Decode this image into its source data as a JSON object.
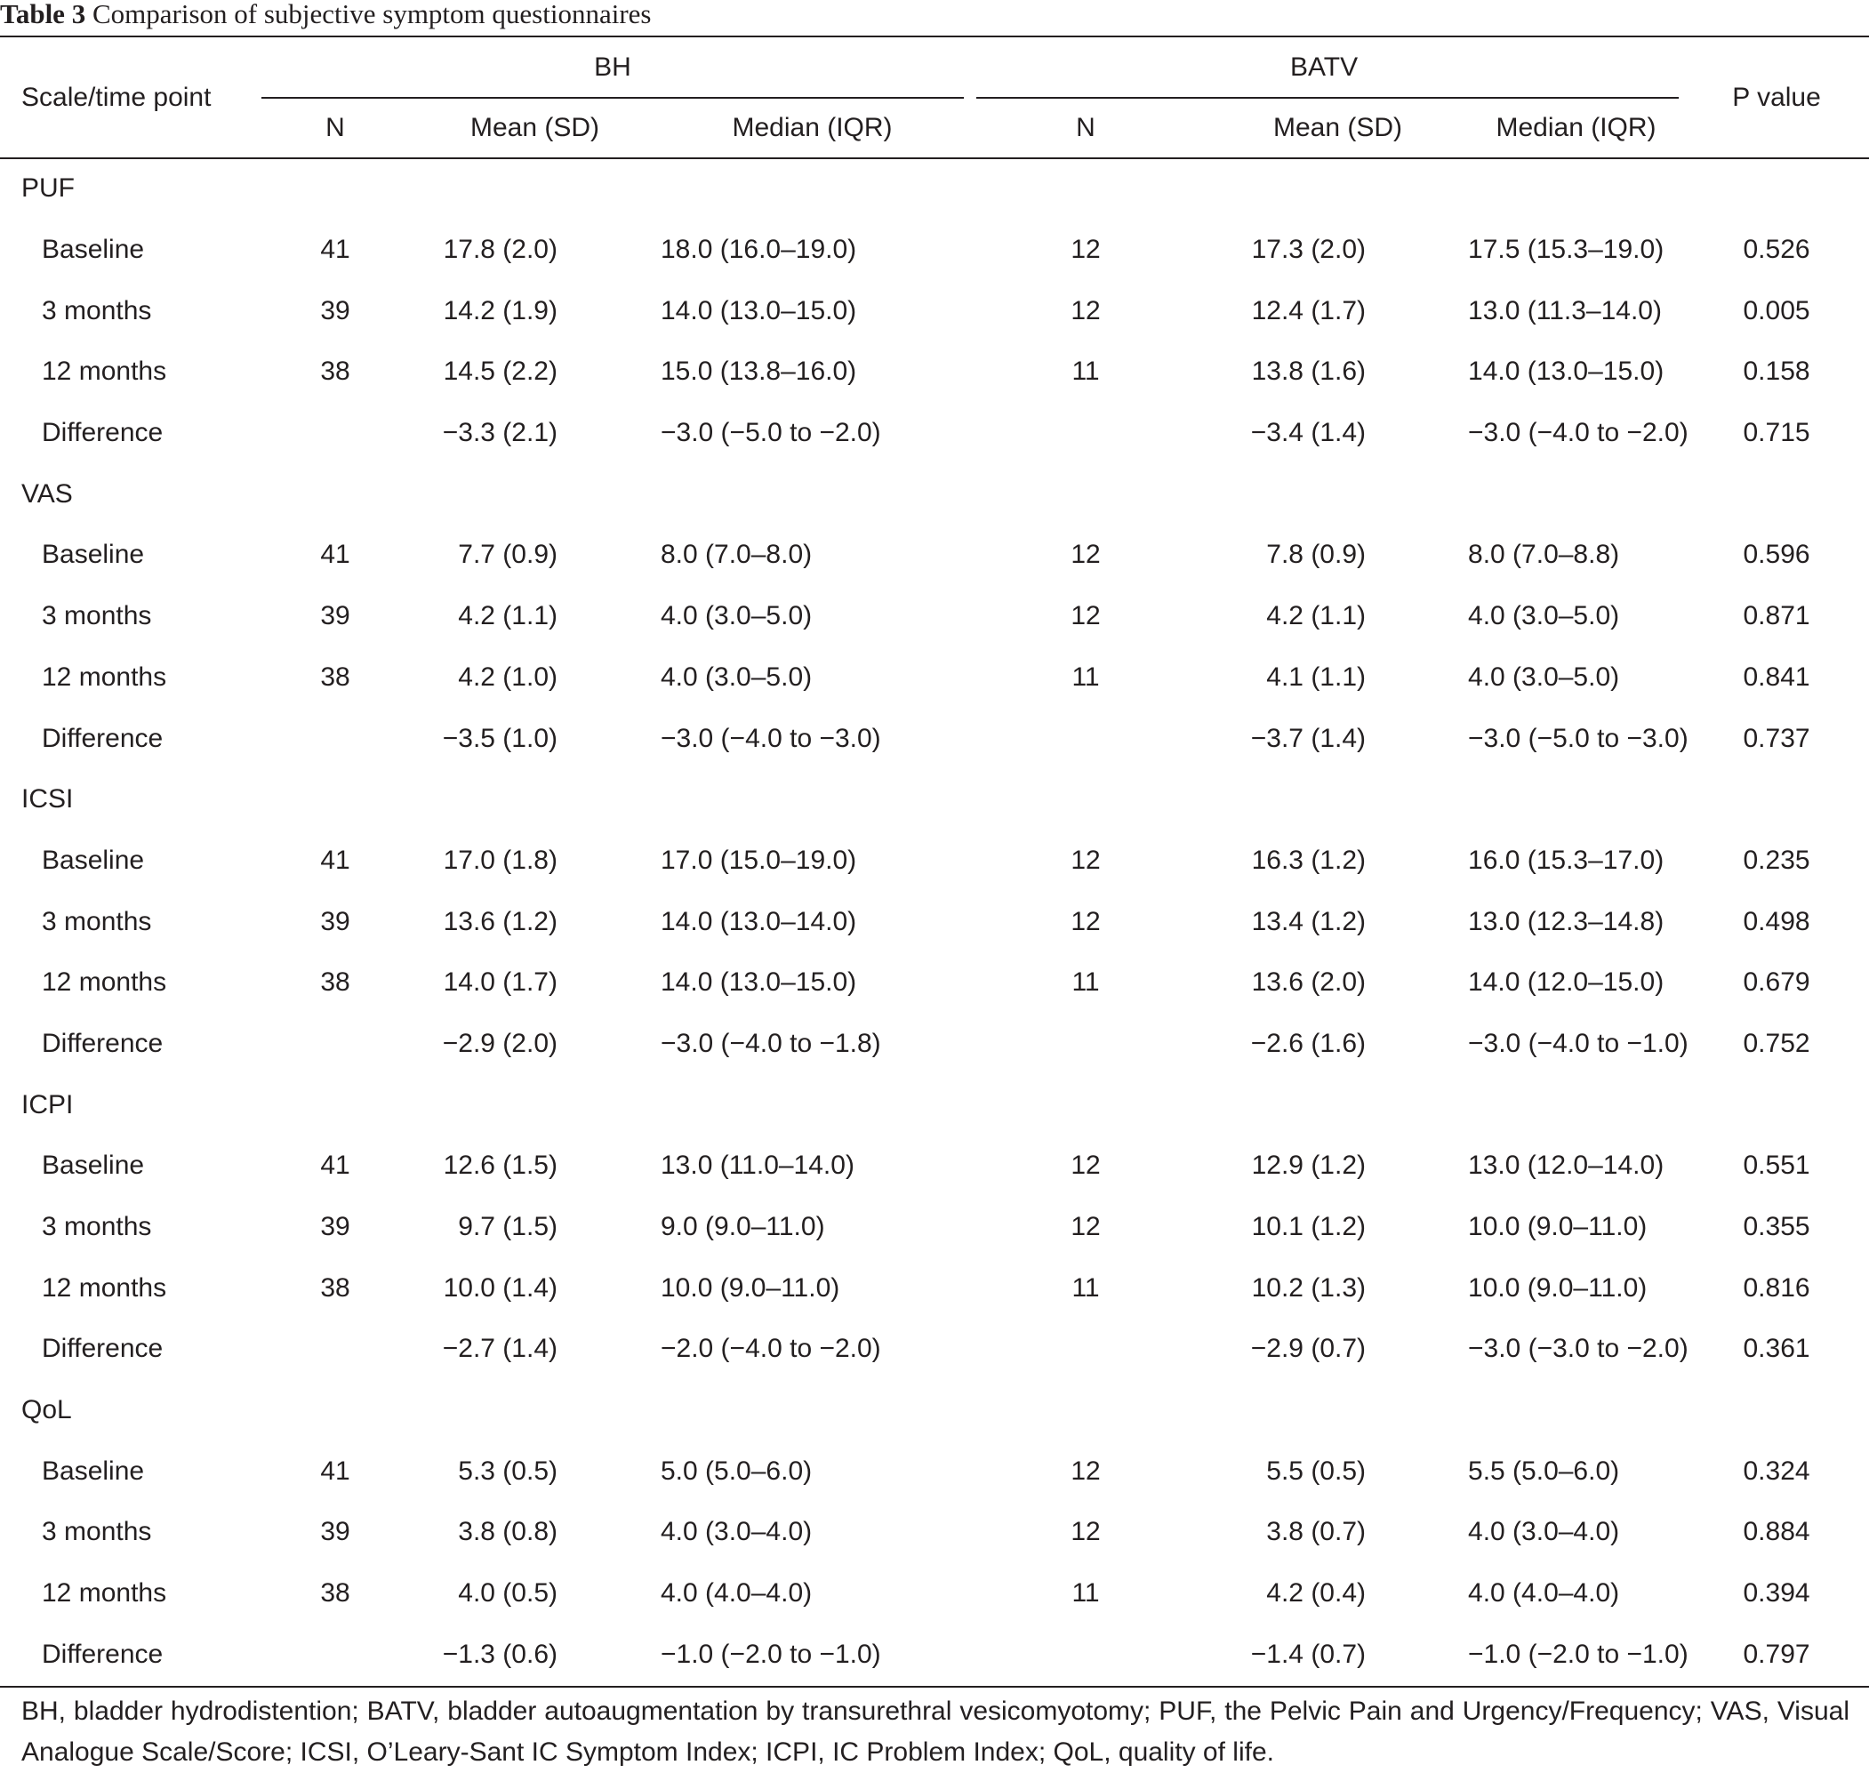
{
  "caption": {
    "label": "Table 3",
    "title": "Comparison of subjective symptom questionnaires"
  },
  "header": {
    "scale_col": "Scale/time point",
    "group1": "BH",
    "group2": "BATV",
    "p_col": "P value",
    "n": "N",
    "mean": "Mean (SD)",
    "median": "Median (IQR)"
  },
  "sections": [
    {
      "name": "PUF",
      "rows": [
        {
          "time": "Baseline",
          "bh_n": "41",
          "bh_mean": "17.8 (2.0)",
          "bh_median": "18.0 (16.0–19.0)",
          "batv_n": "12",
          "batv_mean": "17.3 (2.0)",
          "batv_median": "17.5 (15.3–19.0)",
          "p": "0.526"
        },
        {
          "time": "3 months",
          "bh_n": "39",
          "bh_mean": "14.2 (1.9)",
          "bh_median": "14.0 (13.0–15.0)",
          "batv_n": "12",
          "batv_mean": "12.4 (1.7)",
          "batv_median": "13.0 (11.3–14.0)",
          "p": "0.005"
        },
        {
          "time": "12 months",
          "bh_n": "38",
          "bh_mean": "14.5 (2.2)",
          "bh_median": "15.0 (13.8–16.0)",
          "batv_n": "11",
          "batv_mean": "13.8 (1.6)",
          "batv_median": "14.0 (13.0–15.0)",
          "p": "0.158"
        },
        {
          "time": "Difference",
          "bh_n": "",
          "bh_mean": "−3.3 (2.1)",
          "bh_median": "−3.0 (−5.0 to −2.0)",
          "batv_n": "",
          "batv_mean": "−3.4 (1.4)",
          "batv_median": "−3.0 (−4.0 to −2.0)",
          "p": "0.715"
        }
      ]
    },
    {
      "name": "VAS",
      "rows": [
        {
          "time": "Baseline",
          "bh_n": "41",
          "bh_mean": "7.7 (0.9)",
          "bh_median": "8.0 (7.0–8.0)",
          "batv_n": "12",
          "batv_mean": "7.8 (0.9)",
          "batv_median": "8.0 (7.0–8.8)",
          "p": "0.596"
        },
        {
          "time": "3 months",
          "bh_n": "39",
          "bh_mean": "4.2 (1.1)",
          "bh_median": "4.0 (3.0–5.0)",
          "batv_n": "12",
          "batv_mean": "4.2 (1.1)",
          "batv_median": "4.0 (3.0–5.0)",
          "p": "0.871"
        },
        {
          "time": "12 months",
          "bh_n": "38",
          "bh_mean": "4.2 (1.0)",
          "bh_median": "4.0 (3.0–5.0)",
          "batv_n": "11",
          "batv_mean": "4.1 (1.1)",
          "batv_median": "4.0 (3.0–5.0)",
          "p": "0.841"
        },
        {
          "time": "Difference",
          "bh_n": "",
          "bh_mean": "−3.5 (1.0)",
          "bh_median": "−3.0 (−4.0 to −3.0)",
          "batv_n": "",
          "batv_mean": "−3.7 (1.4)",
          "batv_median": "−3.0 (−5.0 to −3.0)",
          "p": "0.737"
        }
      ]
    },
    {
      "name": "ICSI",
      "rows": [
        {
          "time": "Baseline",
          "bh_n": "41",
          "bh_mean": "17.0 (1.8)",
          "bh_median": "17.0 (15.0–19.0)",
          "batv_n": "12",
          "batv_mean": "16.3 (1.2)",
          "batv_median": "16.0 (15.3–17.0)",
          "p": "0.235"
        },
        {
          "time": "3 months",
          "bh_n": "39",
          "bh_mean": "13.6 (1.2)",
          "bh_median": "14.0 (13.0–14.0)",
          "batv_n": "12",
          "batv_mean": "13.4 (1.2)",
          "batv_median": "13.0 (12.3–14.8)",
          "p": "0.498"
        },
        {
          "time": "12 months",
          "bh_n": "38",
          "bh_mean": "14.0 (1.7)",
          "bh_median": "14.0 (13.0–15.0)",
          "batv_n": "11",
          "batv_mean": "13.6 (2.0)",
          "batv_median": "14.0 (12.0–15.0)",
          "p": "0.679"
        },
        {
          "time": "Difference",
          "bh_n": "",
          "bh_mean": "−2.9 (2.0)",
          "bh_median": "−3.0 (−4.0 to −1.8)",
          "batv_n": "",
          "batv_mean": "−2.6 (1.6)",
          "batv_median": "−3.0 (−4.0 to −1.0)",
          "p": "0.752"
        }
      ]
    },
    {
      "name": "ICPI",
      "rows": [
        {
          "time": "Baseline",
          "bh_n": "41",
          "bh_mean": "12.6 (1.5)",
          "bh_median": "13.0 (11.0–14.0)",
          "batv_n": "12",
          "batv_mean": "12.9 (1.2)",
          "batv_median": "13.0 (12.0–14.0)",
          "p": "0.551"
        },
        {
          "time": "3 months",
          "bh_n": "39",
          "bh_mean": "9.7 (1.5)",
          "bh_median": "9.0 (9.0–11.0)",
          "batv_n": "12",
          "batv_mean": "10.1 (1.2)",
          "batv_median": "10.0 (9.0–11.0)",
          "p": "0.355"
        },
        {
          "time": "12 months",
          "bh_n": "38",
          "bh_mean": "10.0 (1.4)",
          "bh_median": "10.0 (9.0–11.0)",
          "batv_n": "11",
          "batv_mean": "10.2 (1.3)",
          "batv_median": "10.0 (9.0–11.0)",
          "p": "0.816"
        },
        {
          "time": "Difference",
          "bh_n": "",
          "bh_mean": "−2.7 (1.4)",
          "bh_median": "−2.0 (−4.0 to −2.0)",
          "batv_n": "",
          "batv_mean": "−2.9 (0.7)",
          "batv_median": "−3.0 (−3.0 to −2.0)",
          "p": "0.361"
        }
      ]
    },
    {
      "name": "QoL",
      "rows": [
        {
          "time": "Baseline",
          "bh_n": "41",
          "bh_mean": "5.3 (0.5)",
          "bh_median": "5.0 (5.0–6.0)",
          "batv_n": "12",
          "batv_mean": "5.5 (0.5)",
          "batv_median": "5.5 (5.0–6.0)",
          "p": "0.324"
        },
        {
          "time": "3 months",
          "bh_n": "39",
          "bh_mean": "3.8 (0.8)",
          "bh_median": "4.0 (3.0–4.0)",
          "batv_n": "12",
          "batv_mean": "3.8 (0.7)",
          "batv_median": "4.0 (3.0–4.0)",
          "p": "0.884"
        },
        {
          "time": "12 months",
          "bh_n": "38",
          "bh_mean": "4.0 (0.5)",
          "bh_median": "4.0 (4.0–4.0)",
          "batv_n": "11",
          "batv_mean": "4.2 (0.4)",
          "batv_median": "4.0 (4.0–4.0)",
          "p": "0.394"
        },
        {
          "time": "Difference",
          "bh_n": "",
          "bh_mean": "−1.3 (0.6)",
          "bh_median": "−1.0 (−2.0 to −1.0)",
          "batv_n": "",
          "batv_mean": "−1.4 (0.7)",
          "batv_median": "−1.0 (−2.0 to −1.0)",
          "p": "0.797"
        }
      ]
    }
  ],
  "footnote": "BH, bladder hydrodistention; BATV, bladder autoaugmentation by transurethral vesicomyotomy; PUF, the Pelvic Pain and Urgency/Frequency; VAS, Visual Analogue Scale/Score; ICSI, O’Leary-Sant IC Symptom Index; ICPI, IC Problem Index; QoL, quality of life."
}
